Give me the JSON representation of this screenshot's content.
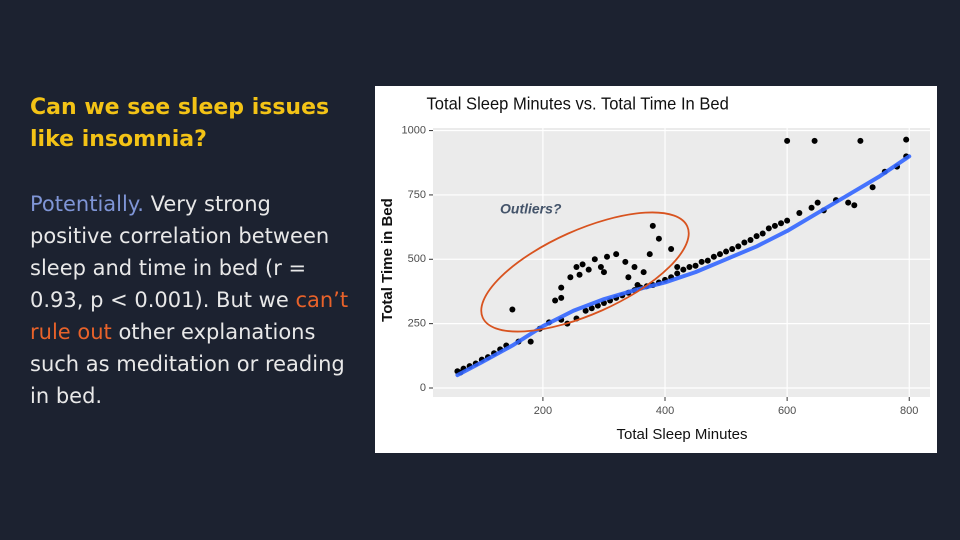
{
  "slide": {
    "heading": "Can we see sleep issues like insomnia?",
    "body": [
      "Potentially.",
      "  Very strong positive correlation between sleep and time in bed (r = 0.93, p < 0.001). But we ",
      "can’t rule out",
      " other explanations such as meditation or reading in bed."
    ]
  },
  "chart_data": {
    "type": "scatter",
    "title": "Total Sleep Minutes vs. Total Time In Bed",
    "x_label": "Total Sleep Minutes",
    "y_label": "Total Time in Bed",
    "annotation": "Outliers?",
    "xlim": [
      20,
      834
    ],
    "ylim": [
      -35,
      1010
    ],
    "xticks": [
      200,
      400,
      600,
      800
    ],
    "yticks": [
      0,
      250,
      500,
      750,
      1000
    ],
    "grid": true,
    "series": [
      {
        "color": "#000000",
        "x": [
          60,
          65,
          70,
          80,
          90,
          100,
          110,
          120,
          130,
          140,
          160,
          180,
          195,
          210,
          230,
          240,
          255,
          270,
          280,
          290,
          300,
          310,
          320,
          330,
          340,
          350,
          360,
          370,
          380,
          390,
          400,
          410,
          420,
          430,
          440,
          450,
          460,
          470,
          480,
          490,
          500,
          510,
          520,
          530,
          540,
          550,
          560,
          570,
          580,
          590,
          600,
          620,
          640,
          650,
          660,
          680,
          700,
          710,
          740,
          760,
          780,
          795,
          600,
          645,
          720,
          795,
          150,
          220,
          230,
          245,
          255,
          265,
          275,
          285,
          295,
          305,
          320,
          335,
          350,
          365,
          375,
          380,
          390,
          410,
          420,
          260,
          300,
          340,
          355,
          230
        ],
        "values": [
          65,
          60,
          75,
          85,
          95,
          110,
          120,
          135,
          150,
          165,
          180,
          180,
          230,
          255,
          265,
          250,
          270,
          300,
          310,
          320,
          330,
          340,
          350,
          360,
          370,
          380,
          390,
          395,
          400,
          410,
          420,
          430,
          445,
          460,
          470,
          475,
          490,
          495,
          510,
          520,
          530,
          540,
          550,
          565,
          575,
          590,
          600,
          620,
          630,
          640,
          650,
          680,
          700,
          720,
          690,
          730,
          720,
          710,
          780,
          840,
          860,
          900,
          960,
          960,
          960,
          965,
          305,
          340,
          390,
          430,
          470,
          480,
          460,
          500,
          470,
          510,
          520,
          490,
          470,
          450,
          520,
          630,
          580,
          540,
          470,
          440,
          450,
          430,
          400,
          350
        ]
      }
    ],
    "trend": {
      "color": "#3366ff",
      "x": [
        60,
        100,
        150,
        200,
        250,
        300,
        350,
        400,
        450,
        500,
        550,
        600,
        650,
        700,
        750,
        800
      ],
      "values": [
        50,
        100,
        165,
        240,
        300,
        345,
        380,
        410,
        450,
        500,
        550,
        610,
        680,
        750,
        820,
        900
      ]
    }
  }
}
